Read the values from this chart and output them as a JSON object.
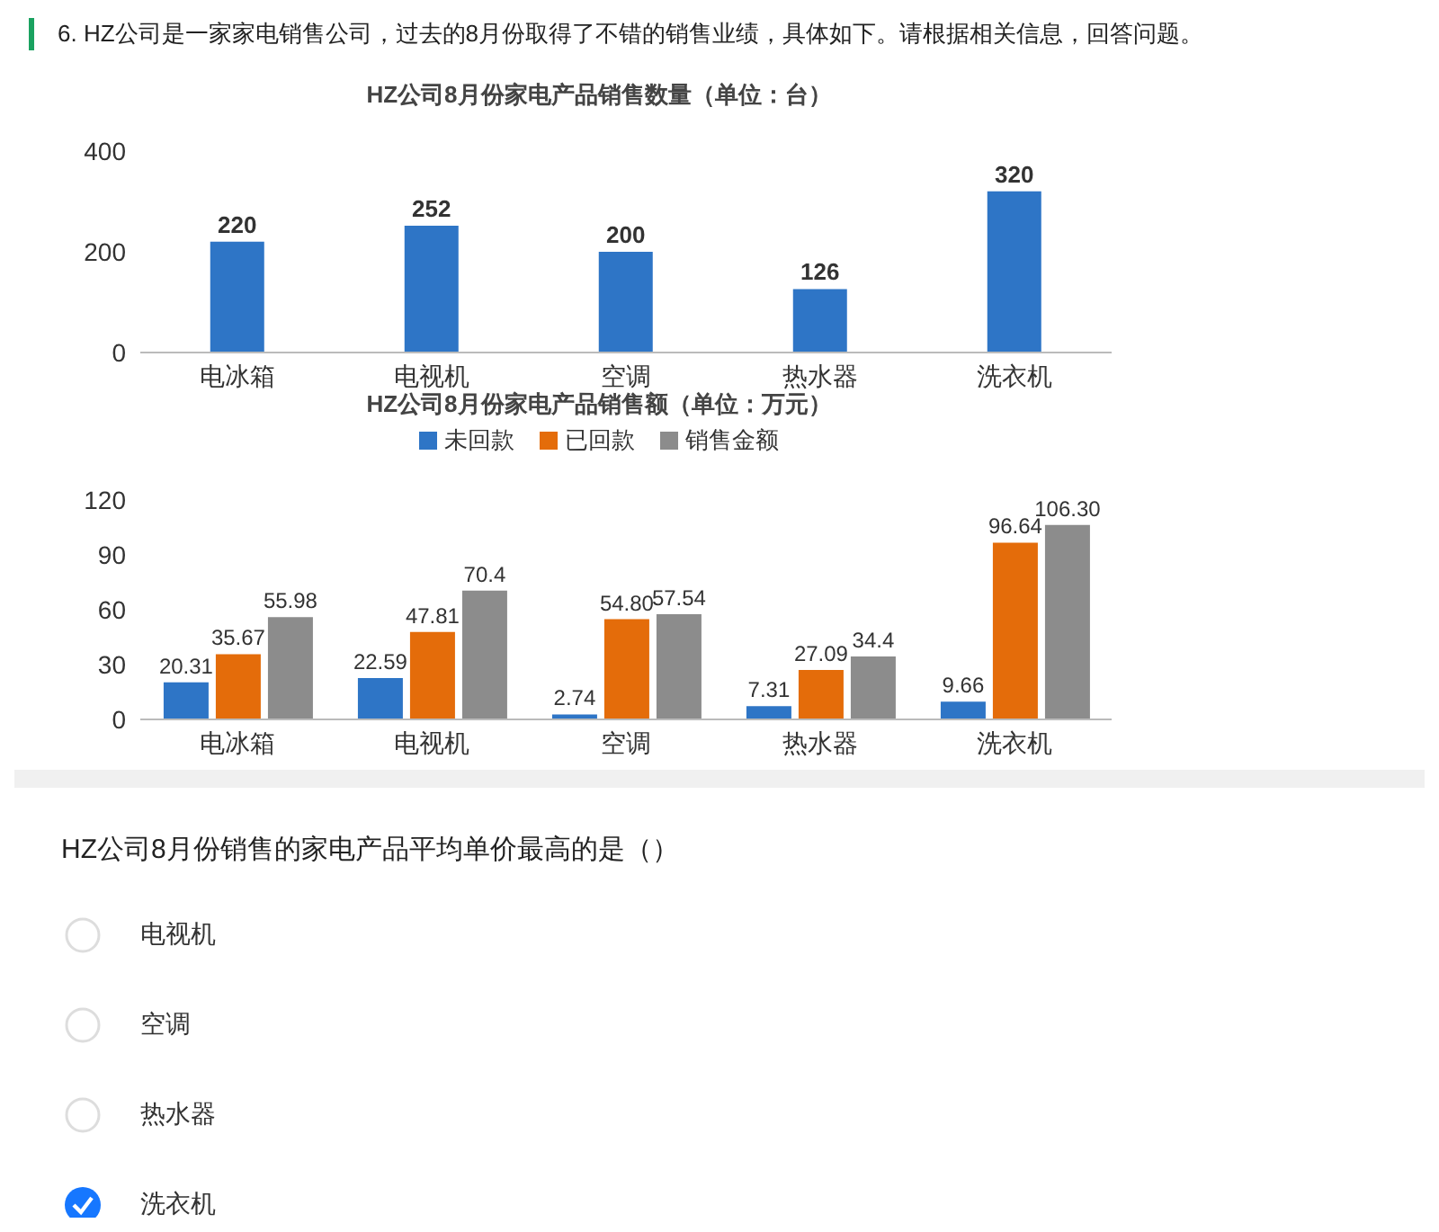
{
  "chart_data": [
    {
      "type": "bar",
      "title": "HZ公司8月份家电产品销售数量（单位：台）",
      "annotations": [
        "6.  HZ公司是一家家电销售公司，过去的8月份取得了不错的销售业绩，具体如下。请根据相关信息，回答问题。"
      ],
      "categories": [
        "电冰箱",
        "电视机",
        "空调",
        "热水器",
        "洗衣机"
      ],
      "values": [
        220,
        252,
        200,
        126,
        320
      ],
      "color": "#2e75c6",
      "ylim": [
        0,
        400
      ],
      "yticks": [
        0,
        200,
        400
      ],
      "data_labels": true,
      "grid": false
    },
    {
      "type": "bar",
      "title": "HZ公司8月份家电产品销售额（单位：万元）",
      "categories": [
        "电冰箱",
        "电视机",
        "空调",
        "热水器",
        "洗衣机"
      ],
      "legend": "top",
      "ylim": [
        0,
        120
      ],
      "yticks": [
        0,
        30,
        60,
        90,
        120
      ],
      "grid": false,
      "series": [
        {
          "name": "未回款",
          "color": "#2e75c6",
          "values": [
            20.31,
            22.59,
            2.74,
            7.31,
            9.66
          ],
          "value_labels": [
            "20.31",
            "22.59",
            "2.74",
            "7.31",
            "9.66"
          ]
        },
        {
          "name": "已回款",
          "color": "#e46c0a",
          "values": [
            35.67,
            47.81,
            54.8,
            27.09,
            96.64
          ],
          "value_labels": [
            "35.67",
            "47.81",
            "54.80",
            "27.09",
            "96.64"
          ]
        },
        {
          "name": "销售金额",
          "color": "#8c8c8c",
          "values": [
            55.98,
            70.4,
            57.54,
            34.4,
            106.3
          ],
          "value_labels": [
            "55.98",
            "70.4",
            "57.54",
            "34.4",
            "106.30"
          ]
        }
      ],
      "annotations": [
        "HZ公司8月份销售的家电产品平均单价最高的是（）",
        "电视机",
        "空调",
        "热水器",
        "洗衣机"
      ]
    }
  ]
}
